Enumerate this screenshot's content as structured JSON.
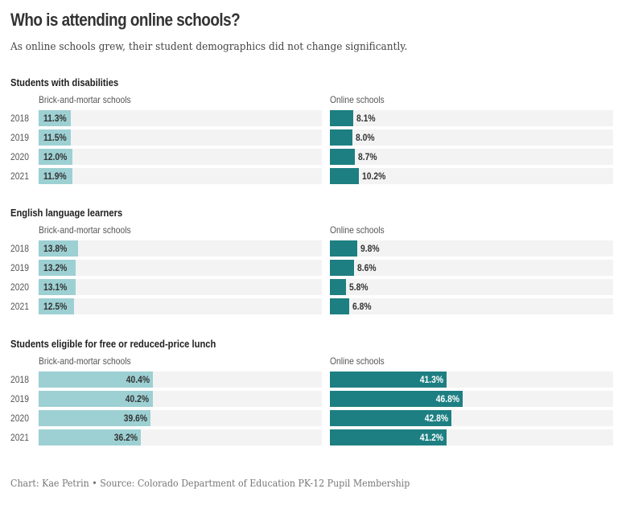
{
  "header": {
    "title": "Who is attending online schools?",
    "subtitle": "As online schools grew, their student demographics did not change significantly."
  },
  "footer": {
    "credit": "Chart: Kae Petrin • Source: Colorado Department of Education PK-12 Pupil Membership"
  },
  "colors": {
    "brick_bar": "#9dd0d3",
    "online_bar": "#1d7f82",
    "track": "#f3f3f3",
    "label_dark": "#333333",
    "label_light": "#ffffff"
  },
  "chart_data": [
    {
      "type": "bar",
      "orientation": "horizontal",
      "title": "Students with disabilities",
      "categories": [
        "2018",
        "2019",
        "2020",
        "2021"
      ],
      "unit": "%",
      "xlim": [
        0,
        100
      ],
      "series": [
        {
          "name": "Brick-and-mortar schools",
          "values": [
            11.3,
            11.5,
            12.0,
            11.9
          ],
          "labels": [
            "11.3%",
            "11.5%",
            "12.0%",
            "11.9%"
          ]
        },
        {
          "name": "Online schools",
          "values": [
            8.1,
            8.0,
            8.7,
            10.2
          ],
          "labels": [
            "8.1%",
            "8.0%",
            "8.7%",
            "10.2%"
          ]
        }
      ]
    },
    {
      "type": "bar",
      "orientation": "horizontal",
      "title": "English language learners",
      "categories": [
        "2018",
        "2019",
        "2020",
        "2021"
      ],
      "unit": "%",
      "xlim": [
        0,
        100
      ],
      "series": [
        {
          "name": "Brick-and-mortar schools",
          "values": [
            13.8,
            13.2,
            13.1,
            12.5
          ],
          "labels": [
            "13.8%",
            "13.2%",
            "13.1%",
            "12.5%"
          ]
        },
        {
          "name": "Online schools",
          "values": [
            9.8,
            8.6,
            5.8,
            6.8
          ],
          "labels": [
            "9.8%",
            "8.6%",
            "5.8%",
            "6.8%"
          ]
        }
      ]
    },
    {
      "type": "bar",
      "orientation": "horizontal",
      "title": "Students eligible for free or reduced-price lunch",
      "categories": [
        "2018",
        "2019",
        "2020",
        "2021"
      ],
      "unit": "%",
      "xlim": [
        0,
        100
      ],
      "series": [
        {
          "name": "Brick-and-mortar schools",
          "values": [
            40.4,
            40.2,
            39.6,
            36.2
          ],
          "labels": [
            "40.4%",
            "40.2%",
            "39.6%",
            "36.2%"
          ]
        },
        {
          "name": "Online schools",
          "values": [
            41.3,
            46.8,
            42.8,
            41.2
          ],
          "labels": [
            "41.3%",
            "46.8%",
            "42.8%",
            "41.2%"
          ]
        }
      ]
    }
  ]
}
